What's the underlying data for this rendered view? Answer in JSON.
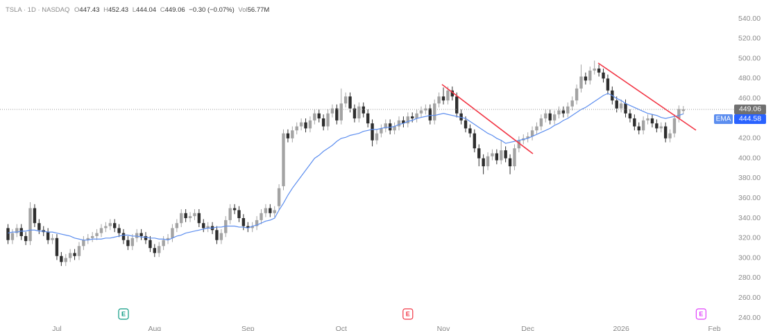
{
  "chart_data": {
    "type": "candlestick",
    "symbol": "TSLA · 1D · NASDAQ",
    "header": {
      "o_label": "O",
      "h_label": "H",
      "l_label": "L",
      "c_label": "C",
      "change": "−0.30 (−0.07%)",
      "vol_label": "Vol",
      "vol": "56.77M"
    },
    "up_color": "#a3a3a3",
    "down_color": "#2e2e2e",
    "open": [
      330,
      318,
      325,
      330,
      322,
      317,
      350,
      335,
      328,
      326,
      318,
      320,
      302,
      296,
      300,
      305,
      302,
      312,
      318,
      320,
      322,
      325,
      330,
      332,
      335,
      330,
      325,
      318,
      312,
      320,
      325,
      322,
      318,
      310,
      305,
      312,
      318,
      320,
      330,
      335,
      345,
      340,
      342,
      345,
      335,
      330,
      332,
      328,
      318,
      325,
      338,
      350,
      348,
      340,
      332,
      330,
      332,
      338,
      345,
      350,
      345,
      352,
      372,
      425,
      420,
      428,
      432,
      436,
      430,
      438,
      445,
      440,
      432,
      445,
      450,
      438,
      455,
      462,
      450,
      440,
      452,
      445,
      435,
      418,
      425,
      430,
      435,
      428,
      432,
      438,
      435,
      442,
      440,
      445,
      448,
      450,
      438,
      455,
      462,
      458,
      468,
      462,
      445,
      438,
      430,
      425,
      410,
      400,
      392,
      402,
      405,
      398,
      408,
      400,
      392,
      410,
      418,
      420,
      422,
      428,
      432,
      440,
      445,
      438,
      444,
      448,
      445,
      452,
      458,
      470,
      482,
      478,
      488,
      490,
      486,
      480,
      468,
      458,
      450,
      455,
      445,
      440,
      432,
      428,
      438,
      440,
      435,
      430,
      432,
      420,
      425,
      440,
      447.43
    ],
    "high": [
      334,
      329,
      334,
      334,
      326,
      356,
      354,
      339,
      332,
      330,
      324,
      324,
      306,
      304,
      309,
      309,
      316,
      322,
      324,
      326,
      329,
      334,
      336,
      339,
      339,
      334,
      329,
      322,
      324,
      329,
      329,
      326,
      322,
      314,
      316,
      322,
      324,
      334,
      339,
      349,
      349,
      346,
      349,
      349,
      339,
      336,
      336,
      332,
      329,
      342,
      354,
      354,
      352,
      344,
      336,
      336,
      342,
      349,
      354,
      354,
      352,
      374,
      429,
      429,
      432,
      436,
      440,
      440,
      442,
      449,
      449,
      444,
      449,
      454,
      454,
      470,
      466,
      466,
      454,
      456,
      456,
      449,
      439,
      429,
      434,
      439,
      439,
      436,
      442,
      442,
      446,
      446,
      449,
      452,
      454,
      454,
      459,
      466,
      471,
      472,
      472,
      466,
      449,
      442,
      434,
      429,
      414,
      404,
      406,
      409,
      409,
      418,
      412,
      404,
      414,
      422,
      424,
      426,
      432,
      436,
      444,
      449,
      449,
      448,
      452,
      452,
      456,
      462,
      474,
      494,
      486,
      492,
      498,
      494,
      490,
      484,
      472,
      462,
      459,
      459,
      449,
      444,
      436,
      442,
      444,
      444,
      439,
      436,
      436,
      429,
      444,
      453,
      452.43
    ],
    "low": [
      314,
      314,
      321,
      318,
      313,
      313,
      331,
      324,
      322,
      314,
      314,
      298,
      292,
      292,
      296,
      298,
      298,
      308,
      314,
      316,
      318,
      321,
      326,
      328,
      326,
      321,
      314,
      308,
      308,
      316,
      318,
      314,
      306,
      301,
      301,
      308,
      314,
      316,
      326,
      331,
      336,
      336,
      338,
      331,
      326,
      326,
      324,
      314,
      314,
      321,
      334,
      344,
      336,
      328,
      326,
      326,
      328,
      334,
      341,
      341,
      341,
      348,
      368,
      416,
      416,
      424,
      428,
      426,
      426,
      434,
      436,
      428,
      428,
      441,
      434,
      434,
      451,
      446,
      436,
      436,
      441,
      431,
      412,
      414,
      421,
      426,
      424,
      424,
      428,
      431,
      431,
      436,
      436,
      441,
      444,
      434,
      434,
      451,
      454,
      454,
      458,
      441,
      434,
      426,
      421,
      406,
      392,
      384,
      388,
      398,
      394,
      394,
      396,
      384,
      388,
      406,
      414,
      416,
      418,
      424,
      428,
      436,
      434,
      434,
      440,
      441,
      441,
      448,
      454,
      466,
      474,
      474,
      484,
      482,
      476,
      464,
      454,
      446,
      446,
      441,
      436,
      428,
      424,
      424,
      434,
      431,
      426,
      426,
      416,
      416,
      421,
      436,
      444.04
    ],
    "close": [
      318,
      325,
      330,
      322,
      317,
      350,
      335,
      328,
      326,
      318,
      320,
      302,
      296,
      300,
      305,
      302,
      312,
      318,
      320,
      322,
      325,
      330,
      332,
      335,
      330,
      325,
      318,
      312,
      320,
      325,
      322,
      318,
      310,
      305,
      312,
      318,
      320,
      330,
      335,
      345,
      340,
      342,
      345,
      335,
      330,
      332,
      328,
      318,
      325,
      338,
      350,
      348,
      340,
      332,
      330,
      332,
      338,
      345,
      350,
      345,
      348,
      370,
      425,
      420,
      428,
      432,
      436,
      430,
      438,
      445,
      440,
      432,
      445,
      450,
      438,
      455,
      462,
      450,
      440,
      452,
      445,
      435,
      418,
      425,
      430,
      435,
      428,
      432,
      438,
      435,
      442,
      440,
      445,
      448,
      450,
      438,
      455,
      462,
      458,
      468,
      462,
      445,
      438,
      430,
      425,
      410,
      400,
      392,
      402,
      405,
      398,
      408,
      400,
      392,
      410,
      418,
      420,
      422,
      428,
      432,
      440,
      445,
      438,
      444,
      448,
      445,
      452,
      458,
      470,
      482,
      478,
      488,
      490,
      486,
      480,
      468,
      458,
      450,
      455,
      445,
      440,
      432,
      428,
      438,
      440,
      435,
      430,
      432,
      420,
      425,
      440,
      449.36,
      449.06
    ],
    "ema": {
      "name": "EMA",
      "color": "#5b8def",
      "values": [
        325,
        326,
        326,
        327,
        327,
        328,
        328,
        327,
        327,
        326,
        326,
        325,
        324,
        323,
        322,
        320,
        319,
        318,
        318,
        319,
        319,
        319,
        320,
        320,
        321,
        322,
        323,
        323,
        322,
        322,
        321,
        321,
        320,
        320,
        319,
        319,
        318,
        320,
        322,
        323,
        325,
        326,
        327,
        328,
        329,
        330,
        330,
        331,
        331,
        332,
        332,
        332,
        331,
        331,
        330,
        332,
        333,
        335,
        337,
        338,
        340,
        348,
        355,
        363,
        370,
        376,
        382,
        388,
        394,
        400,
        403,
        407,
        410,
        413,
        417,
        420,
        421,
        423,
        424,
        425,
        427,
        428,
        429,
        429,
        430,
        431,
        431,
        432,
        434,
        435,
        437,
        438,
        440,
        441,
        442,
        443,
        443,
        444,
        445,
        444,
        443,
        442,
        441,
        440,
        437,
        434,
        431,
        428,
        425,
        423,
        420,
        418,
        415,
        416,
        417,
        418,
        419,
        420,
        422,
        424,
        426,
        428,
        430,
        433,
        435,
        438,
        440,
        443,
        446,
        449,
        451,
        454,
        457,
        460,
        463,
        465,
        463,
        460,
        458,
        455,
        453,
        451,
        449,
        447,
        445,
        444,
        443,
        441,
        440,
        441,
        442,
        443,
        444.58
      ]
    },
    "xlim": [
      -1.8,
      160
    ],
    "xticks": [
      {
        "value": 11,
        "label": "Jul"
      },
      {
        "value": 33,
        "label": "Aug"
      },
      {
        "value": 54,
        "label": "Sep"
      },
      {
        "value": 75,
        "label": "Oct"
      },
      {
        "value": 98,
        "label": "Nov"
      },
      {
        "value": 117,
        "label": "Dec"
      },
      {
        "value": 138,
        "label": "2026"
      },
      {
        "value": 159,
        "label": "Feb"
      }
    ],
    "ylim": [
      240,
      540
    ],
    "yticks": [
      {
        "value": 240,
        "label": "240.00"
      },
      {
        "value": 260,
        "label": "260.00"
      },
      {
        "value": 280,
        "label": "280.00"
      },
      {
        "value": 300,
        "label": "300.00"
      },
      {
        "value": 320,
        "label": "320.00"
      },
      {
        "value": 340,
        "label": "340.00"
      },
      {
        "value": 360,
        "label": "360.00"
      },
      {
        "value": 380,
        "label": "380.00"
      },
      {
        "value": 400,
        "label": "400.00"
      },
      {
        "value": 420,
        "label": "420.00"
      },
      {
        "value": 440,
        "label": "440.00"
      },
      {
        "value": 460,
        "label": "460.00"
      },
      {
        "value": 480,
        "label": "480.00"
      },
      {
        "value": 500,
        "label": "500.00"
      },
      {
        "value": 520,
        "label": "520.00"
      },
      {
        "value": 540,
        "label": "540.00"
      }
    ],
    "grid": false,
    "events": [
      {
        "label": "E",
        "x": 26,
        "color": "#089981"
      },
      {
        "label": "E",
        "x": 90,
        "color": "#f23645"
      },
      {
        "label": "E",
        "x": 156,
        "color": "#e040fb"
      }
    ]
  }
}
